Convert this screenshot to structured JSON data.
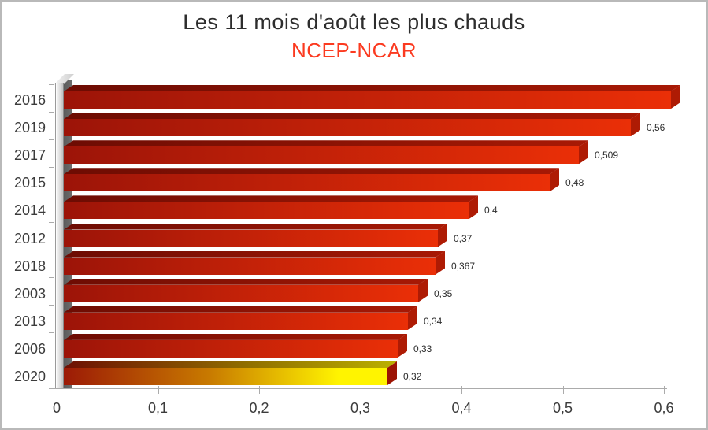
{
  "title": "Les 11 mois d'août les plus chauds",
  "subtitle": "NCEP-NCAR",
  "chart_data": {
    "type": "bar",
    "orientation": "horizontal",
    "title": "Les 11 mois d'août les plus chauds",
    "subtitle": "NCEP-NCAR",
    "categories": [
      "2016",
      "2019",
      "2017",
      "2015",
      "2014",
      "2012",
      "2018",
      "2003",
      "2013",
      "2006",
      "2020"
    ],
    "values": [
      0.6,
      0.56,
      0.509,
      0.48,
      0.4,
      0.37,
      0.367,
      0.35,
      0.34,
      0.33,
      0.32
    ],
    "data_labels": [
      "",
      "0,56",
      "0,509",
      "0,48",
      "0,4",
      "0,37",
      "0,367",
      "0,35",
      "0,34",
      "0,33",
      "0,32"
    ],
    "x_tick_labels": [
      "0",
      "0,1",
      "0,2",
      "0,3",
      "0,4",
      "0,5",
      "0,6"
    ],
    "x_tick_values": [
      0,
      0.1,
      0.2,
      0.3,
      0.4,
      0.5,
      0.6
    ],
    "xlim": [
      0,
      0.6
    ],
    "grid": false,
    "legend": false,
    "style_3d": true,
    "highlight": {
      "category": "2020",
      "style": "red-to-yellow-gradient"
    },
    "colors": {
      "title_text": "#2d2d2d",
      "subtitle_text": "#fb3a20",
      "axis": "#ababab",
      "tick_text": "#3b3b3b",
      "value_label_text": "#2e2e2e",
      "bar_front_start": "#9c1408",
      "bar_front_end": "#ea2f07",
      "bar_top_start": "#6d0c03",
      "bar_top_end": "#a81905",
      "bar_side": "#ae1b04",
      "highlight_front_start": "#9c1a06",
      "highlight_front_mid": "#c87a00",
      "highlight_front_end": "#fff400",
      "highlight_top_start": "#6d0f03",
      "highlight_top_mid": "#8f6e00",
      "highlight_top_end": "#bcb000",
      "highlight_side": "#9c1303",
      "wall_shadow": "#5f5f5f"
    }
  }
}
